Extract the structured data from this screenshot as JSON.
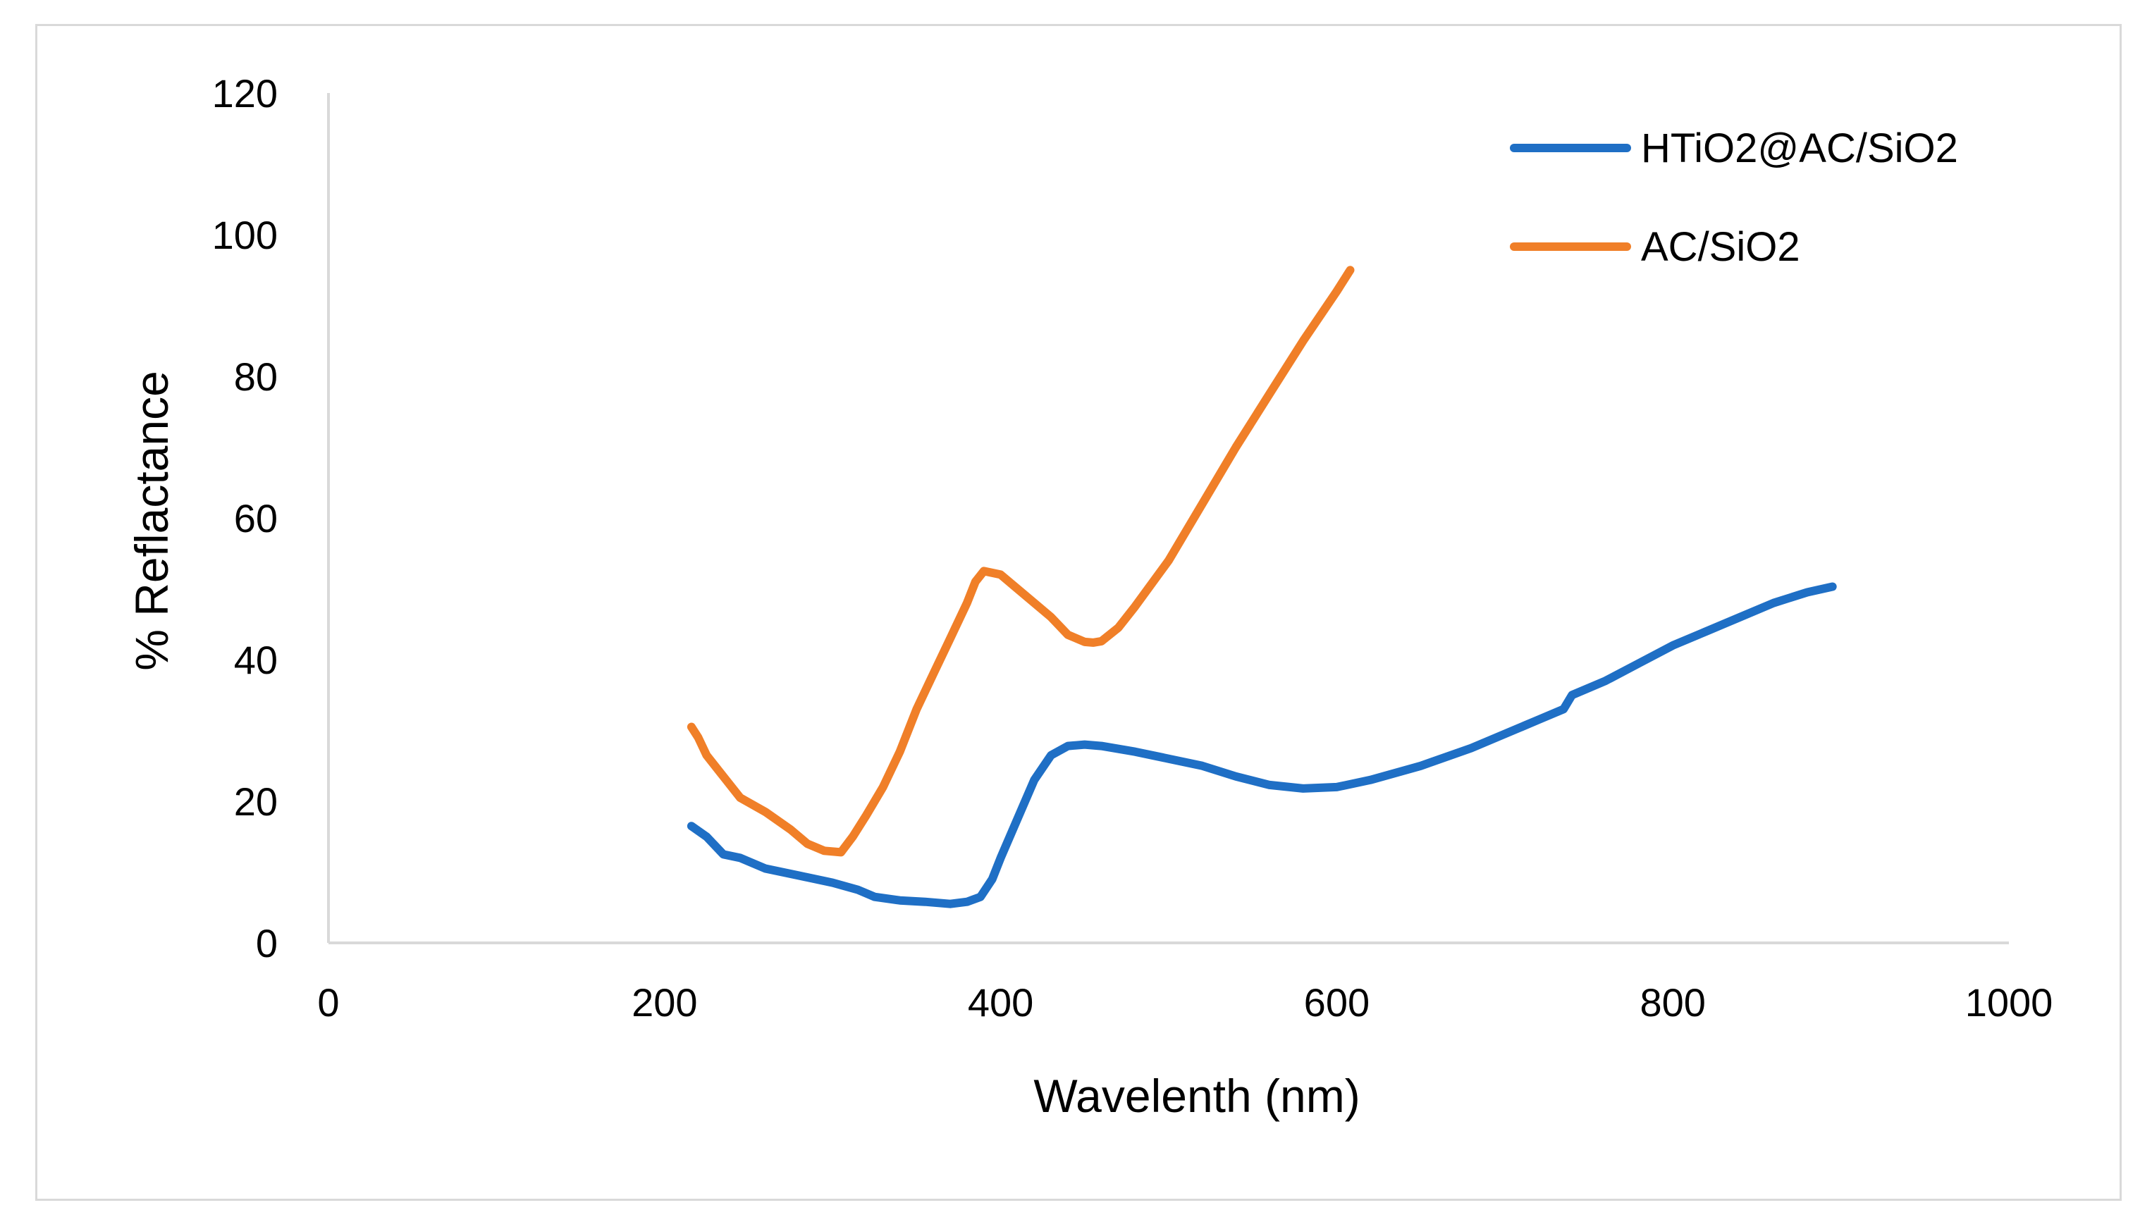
{
  "chart_data": {
    "type": "line",
    "title": "",
    "xlabel": "Wavelenth (nm)",
    "ylabel": "% Reflactance",
    "xlim": [
      0,
      1000
    ],
    "ylim": [
      0,
      120
    ],
    "xticks": [
      "0",
      "200",
      "400",
      "600",
      "800",
      "1000"
    ],
    "yticks": [
      "0",
      "20",
      "40",
      "60",
      "80",
      "100",
      "120"
    ],
    "grid": false,
    "legend_position": "top-right",
    "series": [
      {
        "name": "HTiO2@AC/SiO2",
        "color": "#1f6fc5",
        "x": [
          216,
          225,
          235,
          245,
          260,
          280,
          300,
          315,
          325,
          340,
          355,
          370,
          380,
          388,
          395,
          400,
          410,
          420,
          430,
          440,
          450,
          460,
          480,
          500,
          520,
          540,
          560,
          580,
          600,
          620,
          650,
          680,
          700,
          720,
          735,
          740,
          760,
          780,
          800,
          820,
          840,
          860,
          880,
          895
        ],
        "y": [
          16.5,
          15.0,
          12.5,
          12.0,
          10.5,
          9.5,
          8.5,
          7.5,
          6.5,
          6.0,
          5.8,
          5.5,
          5.8,
          6.5,
          9.0,
          12.0,
          17.5,
          23.0,
          26.5,
          27.8,
          28.0,
          27.8,
          27.0,
          26.0,
          25.0,
          23.5,
          22.3,
          21.8,
          22.0,
          23.0,
          25.0,
          27.5,
          29.5,
          31.5,
          33.0,
          35.0,
          37.0,
          39.5,
          42.0,
          44.0,
          46.0,
          48.0,
          49.5,
          50.3
        ]
      },
      {
        "name": "AC/SiO2",
        "color": "#f07f28",
        "x": [
          216,
          220,
          225,
          235,
          245,
          260,
          275,
          285,
          295,
          305,
          312,
          320,
          330,
          340,
          350,
          360,
          370,
          380,
          385,
          390,
          400,
          410,
          420,
          430,
          440,
          450,
          455,
          460,
          470,
          480,
          500,
          520,
          540,
          560,
          580,
          600,
          608
        ],
        "y": [
          30.5,
          29.0,
          26.5,
          23.5,
          20.5,
          18.5,
          16.0,
          14.0,
          13.0,
          12.8,
          15.0,
          18.0,
          22.0,
          27.0,
          33.0,
          38.0,
          43.0,
          48.0,
          51.0,
          52.5,
          52.0,
          50.0,
          48.0,
          46.0,
          43.5,
          42.5,
          42.4,
          42.6,
          44.5,
          47.5,
          54.0,
          62.0,
          70.0,
          77.5,
          85.0,
          92.0,
          95.0
        ]
      }
    ]
  }
}
